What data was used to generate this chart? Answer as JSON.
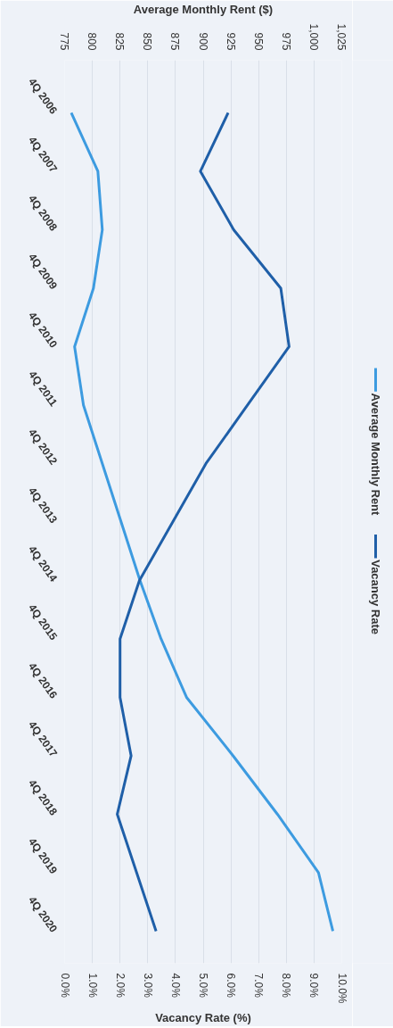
{
  "chart_data": {
    "type": "line",
    "orientation": "horizontal",
    "categories": [
      "4Q 2006",
      "4Q 2007",
      "4Q 2008",
      "4Q 2009",
      "4Q 2010",
      "4Q 2011",
      "4Q 2012",
      "4Q 2013",
      "4Q 2014",
      "4Q 2015",
      "4Q 2016",
      "4Q 2017",
      "4Q 2018",
      "4Q 2019",
      "4Q 2020"
    ],
    "series": [
      {
        "name": "Average Monthly Rent",
        "color": "#3d9be0",
        "axis": "x2",
        "values": [
          781,
          805,
          809,
          801,
          784,
          792,
          809,
          826,
          843,
          862,
          885,
          927,
          967,
          1004,
          1017
        ]
      },
      {
        "name": "Vacancy Rate",
        "color": "#1f5fa8",
        "values": [
          5.9,
          4.9,
          6.1,
          7.8,
          8.1,
          6.6,
          5.1,
          3.9,
          2.7,
          2.0,
          2.0,
          2.4,
          1.9,
          2.6,
          3.3
        ]
      }
    ],
    "xlabel": "Vacancy Rate (%)",
    "x2label": "Average Monthly Rent ($)",
    "xlim": [
      0,
      10
    ],
    "xticks": [
      {
        "value": 0,
        "label": "0.0%"
      },
      {
        "value": 1,
        "label": "1.0%"
      },
      {
        "value": 2,
        "label": "2.0%"
      },
      {
        "value": 3,
        "label": "3.0%"
      },
      {
        "value": 4,
        "label": "4.0%"
      },
      {
        "value": 5,
        "label": "5.0%"
      },
      {
        "value": 6,
        "label": "6.0%"
      },
      {
        "value": 7,
        "label": "7.0%"
      },
      {
        "value": 8,
        "label": "8.0%"
      },
      {
        "value": 9,
        "label": "9.0%"
      },
      {
        "value": 10,
        "label": "10.0%"
      }
    ],
    "x2lim": [
      775,
      1025
    ],
    "x2ticks": [
      775,
      800,
      825,
      850,
      875,
      900,
      925,
      950,
      975,
      {
        "value": 1000,
        "label": "1,000"
      },
      {
        "value": 1025,
        "label": "1,025"
      }
    ],
    "grid": "x2",
    "legend": "right",
    "marker": "none",
    "line_style": "solid"
  }
}
